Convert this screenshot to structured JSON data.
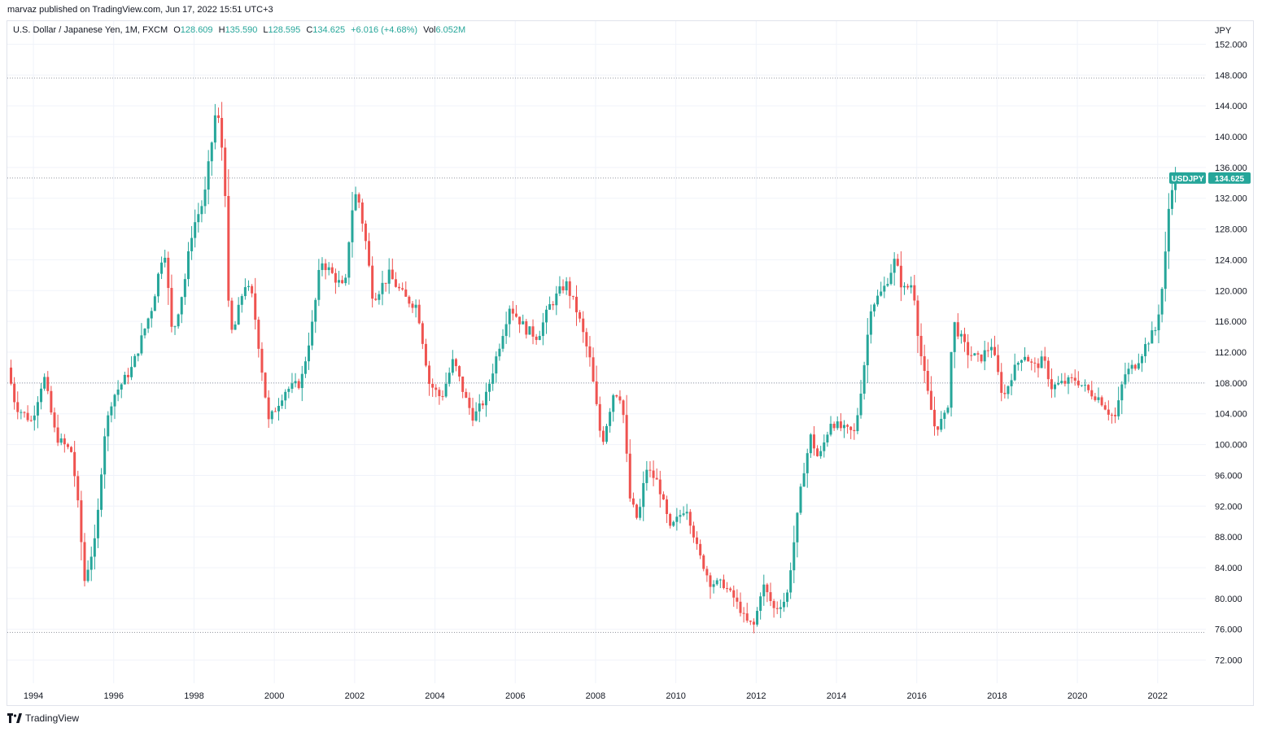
{
  "header": {
    "published": "marvaz published on TradingView.com, Jun 17, 2022 15:51 UTC+3"
  },
  "legend": {
    "symbol": "U.S. Dollar / Japanese Yen, 1M, FXCM",
    "o_label": "O",
    "o_value": "128.609",
    "h_label": "H",
    "h_value": "135.590",
    "l_label": "L",
    "l_value": "128.595",
    "c_label": "C",
    "c_value": "134.625",
    "change": "+6.016 (+4.68%)",
    "vol_label": "Vol",
    "vol_value": "6.052M"
  },
  "footer": {
    "brand": "TradingView"
  },
  "colors": {
    "up": "#26a69a",
    "down": "#ef5350",
    "grid": "#f0f3fa",
    "dotted": "#9598a1",
    "axis_text": "#131722"
  },
  "chart_data": {
    "type": "candlestick",
    "currency_label": "JPY",
    "price_tag": {
      "symbol": "USDJPY",
      "value": 134.625
    },
    "ylim": [
      69,
      155
    ],
    "y_ticks": [
      72,
      76,
      80,
      84,
      88,
      92,
      96,
      100,
      104,
      108,
      112,
      116,
      120,
      124,
      128,
      132,
      136,
      140,
      144,
      148,
      152
    ],
    "x_ticks": [
      1994,
      1996,
      1998,
      2000,
      2002,
      2004,
      2006,
      2008,
      2010,
      2012,
      2014,
      2016,
      2018,
      2020,
      2022
    ],
    "xlim": [
      1993.35,
      2023.2
    ],
    "horizontal_lines": [
      147.6,
      134.625,
      108.0,
      75.6
    ],
    "anchors": [
      [
        1993.4,
        110.0
      ],
      [
        1993.6,
        105.0
      ],
      [
        1994.0,
        103.0
      ],
      [
        1994.3,
        109.0
      ],
      [
        1994.6,
        101.0
      ],
      [
        1995.0,
        99.0
      ],
      [
        1995.2,
        90.0
      ],
      [
        1995.3,
        82.0
      ],
      [
        1995.6,
        88.0
      ],
      [
        1995.8,
        101.0
      ],
      [
        1996.0,
        106.0
      ],
      [
        1996.5,
        110.0
      ],
      [
        1997.0,
        118.0
      ],
      [
        1997.3,
        126.0
      ],
      [
        1997.5,
        114.0
      ],
      [
        1997.8,
        121.0
      ],
      [
        1998.0,
        128.0
      ],
      [
        1998.3,
        132.0
      ],
      [
        1998.5,
        140.0
      ],
      [
        1998.6,
        144.0
      ],
      [
        1998.8,
        136.0
      ],
      [
        1998.9,
        118.0
      ],
      [
        1999.0,
        114.0
      ],
      [
        1999.3,
        121.0
      ],
      [
        1999.5,
        119.0
      ],
      [
        1999.9,
        103.0
      ],
      [
        2000.3,
        107.0
      ],
      [
        2000.7,
        108.0
      ],
      [
        2001.0,
        116.0
      ],
      [
        2001.2,
        124.0
      ],
      [
        2001.5,
        122.0
      ],
      [
        2001.8,
        120.0
      ],
      [
        2001.95,
        130.0
      ],
      [
        2002.1,
        133.0
      ],
      [
        2002.3,
        127.0
      ],
      [
        2002.5,
        119.0
      ],
      [
        2002.9,
        122.0
      ],
      [
        2003.3,
        119.0
      ],
      [
        2003.6,
        118.0
      ],
      [
        2003.9,
        108.0
      ],
      [
        2004.2,
        106.0
      ],
      [
        2004.5,
        111.0
      ],
      [
        2004.8,
        106.0
      ],
      [
        2005.0,
        103.5
      ],
      [
        2005.3,
        106.0
      ],
      [
        2005.6,
        112.0
      ],
      [
        2005.9,
        118.0
      ],
      [
        2006.3,
        115.0
      ],
      [
        2006.6,
        114.0
      ],
      [
        2006.9,
        118.0
      ],
      [
        2007.3,
        121.0
      ],
      [
        2007.6,
        117.0
      ],
      [
        2007.9,
        111.0
      ],
      [
        2008.2,
        100.0
      ],
      [
        2008.5,
        107.0
      ],
      [
        2008.7,
        106.0
      ],
      [
        2008.9,
        93.0
      ],
      [
        2009.1,
        90.0
      ],
      [
        2009.3,
        97.0
      ],
      [
        2009.6,
        95.0
      ],
      [
        2009.9,
        89.0
      ],
      [
        2010.3,
        92.0
      ],
      [
        2010.6,
        86.0
      ],
      [
        2010.9,
        82.0
      ],
      [
        2011.2,
        82.0
      ],
      [
        2011.5,
        80.0
      ],
      [
        2011.8,
        77.0
      ],
      [
        2012.0,
        76.5
      ],
      [
        2012.2,
        82.0
      ],
      [
        2012.5,
        78.5
      ],
      [
        2012.8,
        80.0
      ],
      [
        2012.95,
        86.0
      ],
      [
        2013.2,
        96.0
      ],
      [
        2013.4,
        101.0
      ],
      [
        2013.6,
        98.0
      ],
      [
        2013.9,
        103.0
      ],
      [
        2014.2,
        102.0
      ],
      [
        2014.5,
        101.5
      ],
      [
        2014.7,
        109.0
      ],
      [
        2014.9,
        118.0
      ],
      [
        2015.2,
        120.0
      ],
      [
        2015.5,
        124.0
      ],
      [
        2015.7,
        120.0
      ],
      [
        2015.95,
        121.0
      ],
      [
        2016.1,
        113.0
      ],
      [
        2016.3,
        107.0
      ],
      [
        2016.5,
        102.0
      ],
      [
        2016.8,
        104.0
      ],
      [
        2016.95,
        116.0
      ],
      [
        2017.3,
        112.0
      ],
      [
        2017.6,
        111.0
      ],
      [
        2017.9,
        113.0
      ],
      [
        2018.2,
        106.0
      ],
      [
        2018.4,
        109.0
      ],
      [
        2018.7,
        112.0
      ],
      [
        2018.95,
        110.0
      ],
      [
        2019.2,
        111.0
      ],
      [
        2019.4,
        107.5
      ],
      [
        2019.7,
        108.0
      ],
      [
        2020.0,
        108.5
      ],
      [
        2020.3,
        107.0
      ],
      [
        2020.6,
        106.0
      ],
      [
        2020.85,
        104.0
      ],
      [
        2021.0,
        103.5
      ],
      [
        2021.2,
        109.0
      ],
      [
        2021.5,
        110.5
      ],
      [
        2021.8,
        113.5
      ],
      [
        2022.0,
        115.0
      ],
      [
        2022.2,
        122.0
      ],
      [
        2022.3,
        130.0
      ],
      [
        2022.42,
        134.6
      ]
    ]
  }
}
